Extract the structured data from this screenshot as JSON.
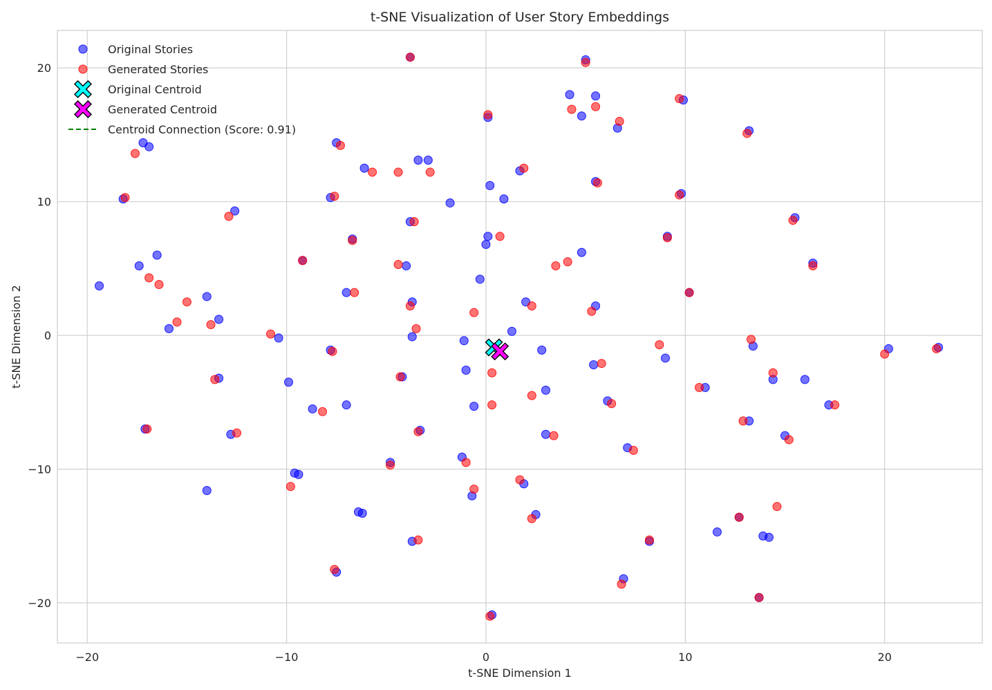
{
  "chart_data": {
    "type": "scatter",
    "title": "t-SNE Visualization of User Story Embeddings",
    "xlabel": "t-SNE Dimension 1",
    "ylabel": "t-SNE Dimension 2",
    "xlim": [
      -21.5,
      24.9
    ],
    "ylim": [
      -23.0,
      22.8
    ],
    "xticks": [
      -20,
      -10,
      0,
      10,
      20
    ],
    "yticks": [
      -20,
      -10,
      0,
      10,
      20
    ],
    "xtick_labels": [
      "−20",
      "−10",
      "0",
      "10",
      "20"
    ],
    "ytick_labels": [
      "−20",
      "−10",
      "0",
      "10",
      "20"
    ],
    "grid": true,
    "legend_position": "top-left",
    "colors": {
      "original": "#0000ff",
      "generated": "#ff0000",
      "original_centroid": "#00ffff",
      "generated_centroid": "#ff00ff",
      "connection": "#008000"
    },
    "legend": [
      {
        "label": "Original Stories",
        "marker": "circle",
        "color": "#0000ff"
      },
      {
        "label": "Generated Stories",
        "marker": "circle",
        "color": "#ff0000"
      },
      {
        "label": "Original Centroid",
        "marker": "x-filled",
        "color": "#00ffff"
      },
      {
        "label": "Generated Centroid",
        "marker": "x-filled",
        "color": "#ff00ff"
      },
      {
        "label": "Centroid Connection (Score: 0.91)",
        "marker": "dashed-line",
        "color": "#008000"
      }
    ],
    "series": [
      {
        "name": "Original Stories",
        "points": [
          [
            -3.8,
            20.8
          ],
          [
            5.0,
            20.6
          ],
          [
            4.2,
            18.0
          ],
          [
            5.5,
            17.9
          ],
          [
            4.8,
            16.4
          ],
          [
            6.6,
            15.5
          ],
          [
            9.9,
            17.6
          ],
          [
            0.1,
            16.3
          ],
          [
            13.2,
            15.3
          ],
          [
            -17.2,
            14.4
          ],
          [
            -16.9,
            14.1
          ],
          [
            -7.5,
            14.4
          ],
          [
            -6.1,
            12.5
          ],
          [
            -3.4,
            13.1
          ],
          [
            -2.9,
            13.1
          ],
          [
            1.7,
            12.3
          ],
          [
            -18.2,
            10.2
          ],
          [
            -7.8,
            10.3
          ],
          [
            0.2,
            11.2
          ],
          [
            0.9,
            10.2
          ],
          [
            -1.8,
            9.9
          ],
          [
            5.5,
            11.5
          ],
          [
            9.8,
            10.6
          ],
          [
            -12.6,
            9.3
          ],
          [
            -3.8,
            8.5
          ],
          [
            0.1,
            7.4
          ],
          [
            0.0,
            6.8
          ],
          [
            -6.7,
            7.2
          ],
          [
            -19.4,
            3.7
          ],
          [
            -17.4,
            5.2
          ],
          [
            -16.5,
            6.0
          ],
          [
            -9.2,
            5.6
          ],
          [
            -4.0,
            5.2
          ],
          [
            -0.3,
            4.2
          ],
          [
            4.8,
            6.2
          ],
          [
            9.1,
            7.4
          ],
          [
            15.5,
            8.8
          ],
          [
            16.4,
            5.4
          ],
          [
            -14.0,
            2.9
          ],
          [
            -13.4,
            1.2
          ],
          [
            -15.9,
            0.5
          ],
          [
            -7.0,
            3.2
          ],
          [
            -3.7,
            2.5
          ],
          [
            -3.7,
            -0.1
          ],
          [
            2.0,
            2.5
          ],
          [
            5.5,
            2.2
          ],
          [
            1.3,
            0.3
          ],
          [
            -10.4,
            -0.2
          ],
          [
            -1.1,
            -0.4
          ],
          [
            -7.8,
            -1.1
          ],
          [
            -1.0,
            -2.6
          ],
          [
            2.8,
            -1.1
          ],
          [
            5.4,
            -2.2
          ],
          [
            9.0,
            -1.7
          ],
          [
            10.2,
            3.2
          ],
          [
            13.4,
            -0.8
          ],
          [
            20.2,
            -1.0
          ],
          [
            22.7,
            -0.9
          ],
          [
            -9.9,
            -3.5
          ],
          [
            -13.4,
            -3.2
          ],
          [
            -4.2,
            -3.1
          ],
          [
            -8.7,
            -5.5
          ],
          [
            -7.0,
            -5.2
          ],
          [
            -0.6,
            -5.3
          ],
          [
            3.0,
            -4.1
          ],
          [
            6.1,
            -4.9
          ],
          [
            11.0,
            -3.9
          ],
          [
            14.4,
            -3.3
          ],
          [
            16.0,
            -3.3
          ],
          [
            17.2,
            -5.2
          ],
          [
            -17.1,
            -7.0
          ],
          [
            -12.8,
            -7.4
          ],
          [
            -3.3,
            -7.1
          ],
          [
            3.0,
            -7.4
          ],
          [
            7.1,
            -8.4
          ],
          [
            13.2,
            -6.4
          ],
          [
            15.0,
            -7.5
          ],
          [
            -9.6,
            -10.3
          ],
          [
            -9.4,
            -10.4
          ],
          [
            -4.8,
            -9.5
          ],
          [
            -1.2,
            -9.1
          ],
          [
            -0.7,
            -12.0
          ],
          [
            1.9,
            -11.1
          ],
          [
            -14.0,
            -11.6
          ],
          [
            -6.4,
            -13.2
          ],
          [
            -6.2,
            -13.3
          ],
          [
            2.5,
            -13.4
          ],
          [
            12.7,
            -13.6
          ],
          [
            11.6,
            -14.7
          ],
          [
            13.9,
            -15.0
          ],
          [
            14.2,
            -15.1
          ],
          [
            -3.7,
            -15.4
          ],
          [
            8.2,
            -15.4
          ],
          [
            -7.5,
            -17.7
          ],
          [
            6.9,
            -18.2
          ],
          [
            13.7,
            -19.6
          ],
          [
            0.3,
            -20.9
          ]
        ]
      },
      {
        "name": "Generated Stories",
        "points": [
          [
            -3.8,
            20.8
          ],
          [
            5.0,
            20.4
          ],
          [
            4.3,
            16.9
          ],
          [
            5.5,
            17.1
          ],
          [
            6.7,
            16.0
          ],
          [
            9.7,
            17.7
          ],
          [
            0.1,
            16.5
          ],
          [
            13.1,
            15.1
          ],
          [
            -17.6,
            13.6
          ],
          [
            -7.3,
            14.2
          ],
          [
            -5.7,
            12.2
          ],
          [
            -4.4,
            12.2
          ],
          [
            -2.8,
            12.2
          ],
          [
            1.9,
            12.5
          ],
          [
            -18.1,
            10.3
          ],
          [
            -7.6,
            10.4
          ],
          [
            5.6,
            11.4
          ],
          [
            9.7,
            10.5
          ],
          [
            -12.9,
            8.9
          ],
          [
            -3.6,
            8.5
          ],
          [
            0.7,
            7.4
          ],
          [
            -6.7,
            7.1
          ],
          [
            9.1,
            7.3
          ],
          [
            15.4,
            8.6
          ],
          [
            16.4,
            5.2
          ],
          [
            -16.9,
            4.3
          ],
          [
            -16.4,
            3.8
          ],
          [
            -9.2,
            5.6
          ],
          [
            -4.4,
            5.3
          ],
          [
            3.5,
            5.2
          ],
          [
            4.1,
            5.5
          ],
          [
            -15.0,
            2.5
          ],
          [
            -15.5,
            1.0
          ],
          [
            -13.8,
            0.8
          ],
          [
            -6.6,
            3.2
          ],
          [
            -3.8,
            2.2
          ],
          [
            -3.5,
            0.5
          ],
          [
            -0.6,
            1.7
          ],
          [
            2.3,
            2.2
          ],
          [
            5.3,
            1.8
          ],
          [
            10.2,
            3.2
          ],
          [
            -10.8,
            0.1
          ],
          [
            8.7,
            -0.7
          ],
          [
            13.3,
            -0.3
          ],
          [
            20.0,
            -1.4
          ],
          [
            22.6,
            -1.0
          ],
          [
            -7.7,
            -1.2
          ],
          [
            0.3,
            -2.8
          ],
          [
            5.8,
            -2.1
          ],
          [
            14.4,
            -2.8
          ],
          [
            10.7,
            -3.9
          ],
          [
            -13.6,
            -3.3
          ],
          [
            -4.3,
            -3.1
          ],
          [
            -8.2,
            -5.7
          ],
          [
            0.3,
            -5.2
          ],
          [
            2.3,
            -4.5
          ],
          [
            6.3,
            -5.1
          ],
          [
            17.5,
            -5.2
          ],
          [
            -17.0,
            -7.0
          ],
          [
            -12.5,
            -7.3
          ],
          [
            -3.4,
            -7.2
          ],
          [
            3.4,
            -7.5
          ],
          [
            7.4,
            -8.6
          ],
          [
            12.9,
            -6.4
          ],
          [
            15.2,
            -7.8
          ],
          [
            -9.8,
            -11.3
          ],
          [
            -4.8,
            -9.7
          ],
          [
            -1.0,
            -9.5
          ],
          [
            -0.6,
            -11.5
          ],
          [
            1.7,
            -10.8
          ],
          [
            2.3,
            -13.7
          ],
          [
            12.7,
            -13.6
          ],
          [
            14.6,
            -12.8
          ],
          [
            -3.4,
            -15.3
          ],
          [
            8.2,
            -15.3
          ],
          [
            -7.6,
            -17.5
          ],
          [
            6.8,
            -18.6
          ],
          [
            13.7,
            -19.6
          ],
          [
            0.2,
            -21.0
          ]
        ]
      },
      {
        "name": "Original Centroid",
        "points": [
          [
            0.4,
            -0.9
          ]
        ]
      },
      {
        "name": "Generated Centroid",
        "points": [
          [
            0.7,
            -1.2
          ]
        ]
      }
    ],
    "connection": {
      "name": "Centroid Connection (Score: 0.91)",
      "from": [
        0.4,
        -0.9
      ],
      "to": [
        0.7,
        -1.2
      ]
    }
  }
}
